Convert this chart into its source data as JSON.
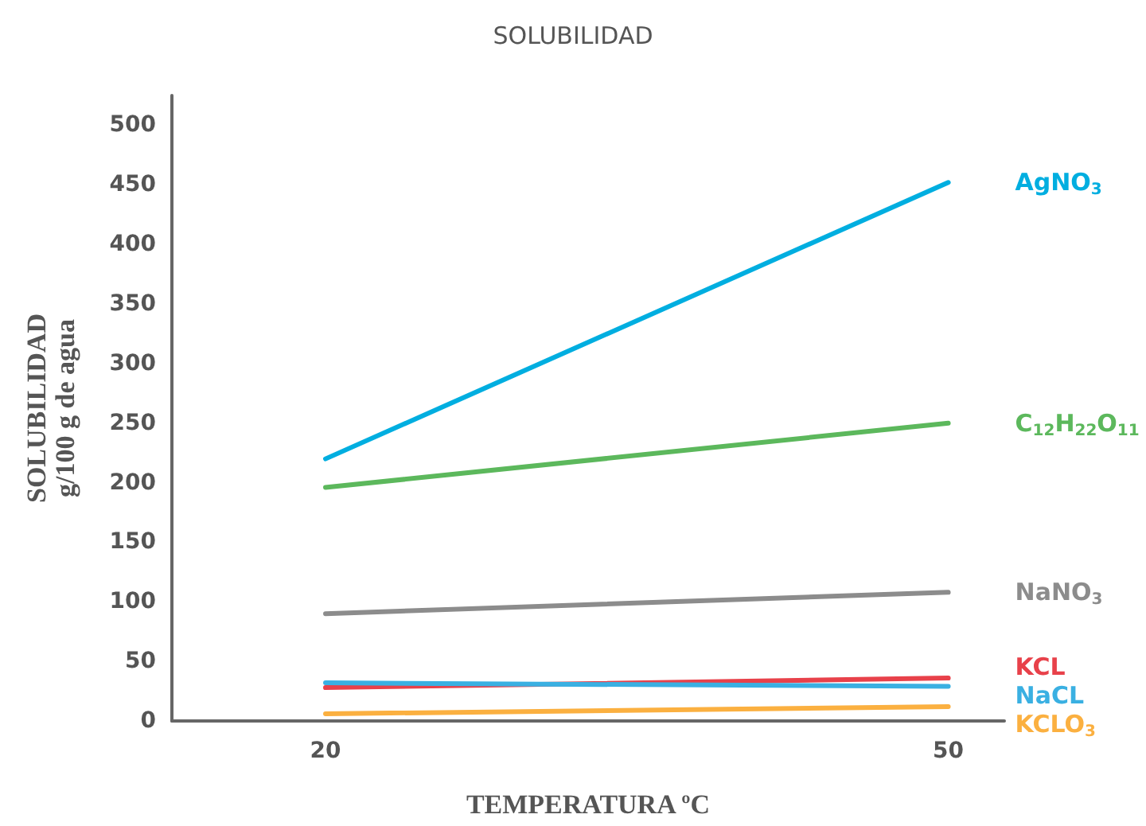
{
  "chart_data": {
    "type": "line",
    "title": "SOLUBILIDAD",
    "xlabel": "TEMPERATURA ºC",
    "ylabel": "SOLUBILIDAD\ng/100 g de agua",
    "x": [
      20,
      50
    ],
    "xlim": [
      12.6,
      52.7
    ],
    "xticks": [
      20,
      50
    ],
    "ylim": [
      0,
      525
    ],
    "yticks": [
      0,
      50,
      100,
      150,
      200,
      250,
      300,
      350,
      400,
      450,
      500
    ],
    "grid": false,
    "legend": false,
    "marker": "none",
    "line_style": "solid",
    "series": [
      {
        "name": "AgNO$_{3}$",
        "color": "#00aee0",
        "values": [
          220,
          452
        ]
      },
      {
        "name": "C$_{12}$H$_{22}$O$_{11}$",
        "color": "#5cb85c",
        "values": [
          196,
          250
        ]
      },
      {
        "name": "NaNO$_{3}$",
        "color": "#8c8c8c",
        "values": [
          90,
          108
        ]
      },
      {
        "name": "KCL",
        "color": "#e8414a",
        "values": [
          28,
          36
        ]
      },
      {
        "name": "NaCL",
        "color": "#3ab0e2",
        "values": [
          32,
          29
        ]
      },
      {
        "name": "KCLO$_{3}$",
        "color": "#fbb040",
        "values": [
          6,
          12
        ]
      }
    ]
  }
}
